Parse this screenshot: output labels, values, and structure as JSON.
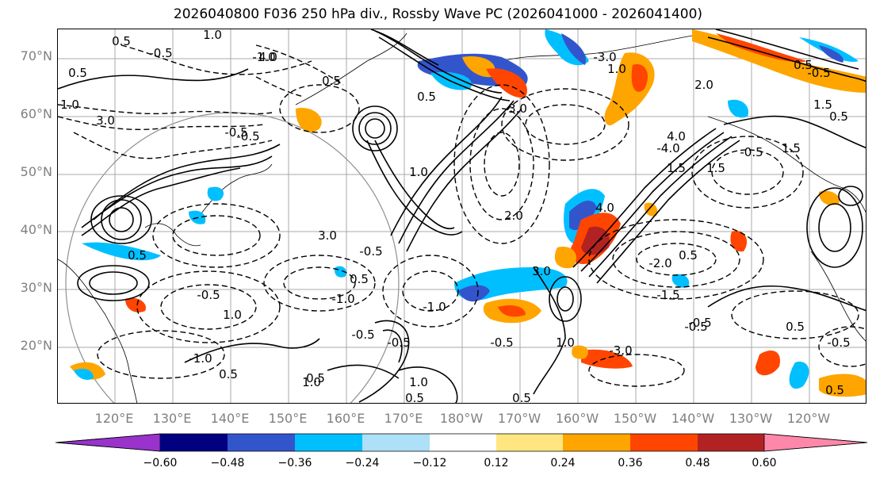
{
  "title": "2026040800 F036 250 hPa div., Rossby Wave PC (2026041000 - 2026041400)",
  "lat_labels": [
    "70°N",
    "60°N",
    "50°N",
    "40°N",
    "30°N",
    "20°N"
  ],
  "lon_labels": [
    "120°E",
    "130°E",
    "140°E",
    "150°E",
    "160°E",
    "170°E",
    "180°W",
    "170°W",
    "160°W",
    "150°W",
    "140°W",
    "130°W",
    "120°W"
  ],
  "contour_labels": [
    "1.0",
    "0.5",
    "-0.5",
    "3.0",
    "1.0",
    "-0.5",
    "0.5",
    "0.5",
    "1.0",
    "-1.0",
    "0.5",
    "-0.5",
    "-1.0",
    "0.5",
    "3.0",
    "0.5",
    "-1.0",
    "4.0",
    "0.5",
    "-0.5",
    "4.0",
    "-2.0",
    "1.5",
    "1.0",
    "-0.5",
    "2.0",
    "-0.5",
    "3.0",
    "1.0",
    "-1.0",
    "-0.5",
    "0.5",
    "1.0",
    "-3.0",
    "0.5",
    "3.0",
    "-0.5",
    "0.5",
    "1.0",
    "-3.0",
    "2.0",
    "1.5",
    "1.5",
    "0.5",
    "4.0",
    "-4.0",
    "-0.5",
    "1.5",
    "-1.5",
    "-0.5",
    "-0.5",
    "-0.5",
    "0.5",
    "-0.5",
    "0.5",
    "1.0",
    "0.5",
    "0.5"
  ],
  "colorbar": {
    "ticks": [
      "−0.60",
      "−0.48",
      "−0.36",
      "−0.24",
      "−0.12",
      "0.12",
      "0.24",
      "0.36",
      "0.48",
      "0.60"
    ],
    "colors": [
      "#9933cc",
      "#000080",
      "#3355cc",
      "#00bfff",
      "#aee0f8",
      "#ffffff",
      "#ffe680",
      "#ffa500",
      "#ff4500",
      "#b22222",
      "#ff88aa"
    ]
  },
  "colors": {
    "negative_strong": "#3355cc",
    "negative_mid": "#00bfff",
    "negative_light": "#aee0f8",
    "positive_light": "#ffe680",
    "positive_mid": "#ffa500",
    "positive_strong": "#ff4500",
    "grid": "#9e9e9e",
    "axis_label": "#808080"
  }
}
